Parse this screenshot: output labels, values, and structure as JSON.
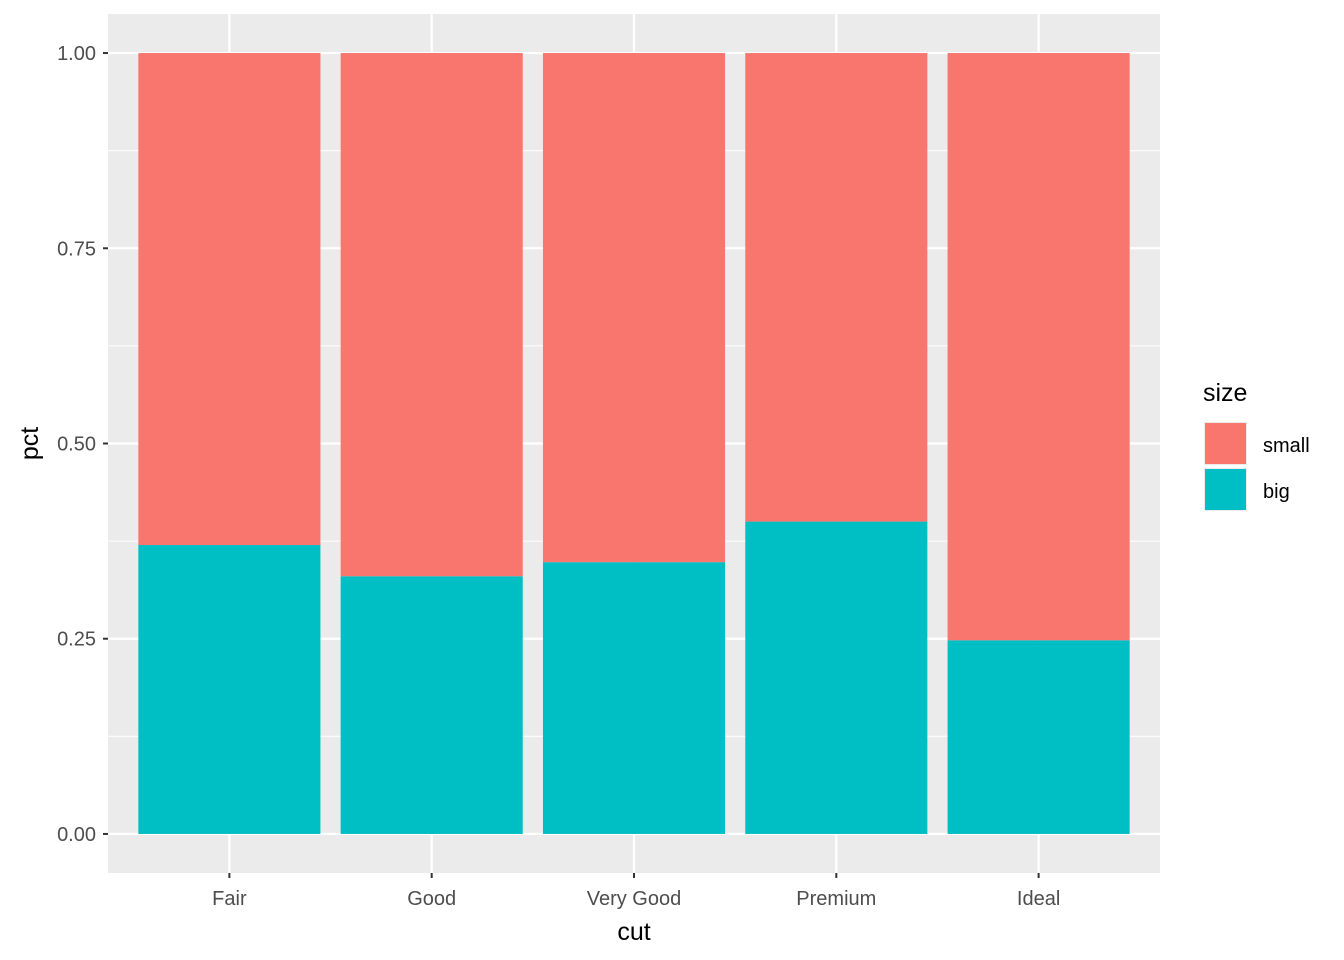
{
  "chart_data": {
    "type": "bar",
    "stacked": true,
    "categories": [
      "Fair",
      "Good",
      "Very Good",
      "Premium",
      "Ideal"
    ],
    "series": [
      {
        "name": "small",
        "values": [
          0.63,
          0.67,
          0.652,
          0.6,
          0.752
        ]
      },
      {
        "name": "big",
        "values": [
          0.37,
          0.33,
          0.348,
          0.4,
          0.248
        ]
      }
    ],
    "stack_order": [
      "big",
      "small"
    ],
    "xlabel": "cut",
    "ylabel": "pct",
    "ylim": [
      -0.05,
      1.05
    ],
    "y_ticks": [
      0,
      0.25,
      0.5,
      0.75,
      1.0
    ],
    "y_tick_labels": [
      "0.00",
      "0.25",
      "0.50",
      "0.75",
      "1.00"
    ],
    "grid": true,
    "legend": {
      "title": "size",
      "placement": "right",
      "items": [
        "small",
        "big"
      ]
    },
    "colors": {
      "small": "#F8766D",
      "big": "#00BFC4",
      "panel_background": "#EBEBEB",
      "grid_major": "#FFFFFF",
      "tick_text": "#4D4D4D",
      "tick_mark": "#333333"
    }
  }
}
